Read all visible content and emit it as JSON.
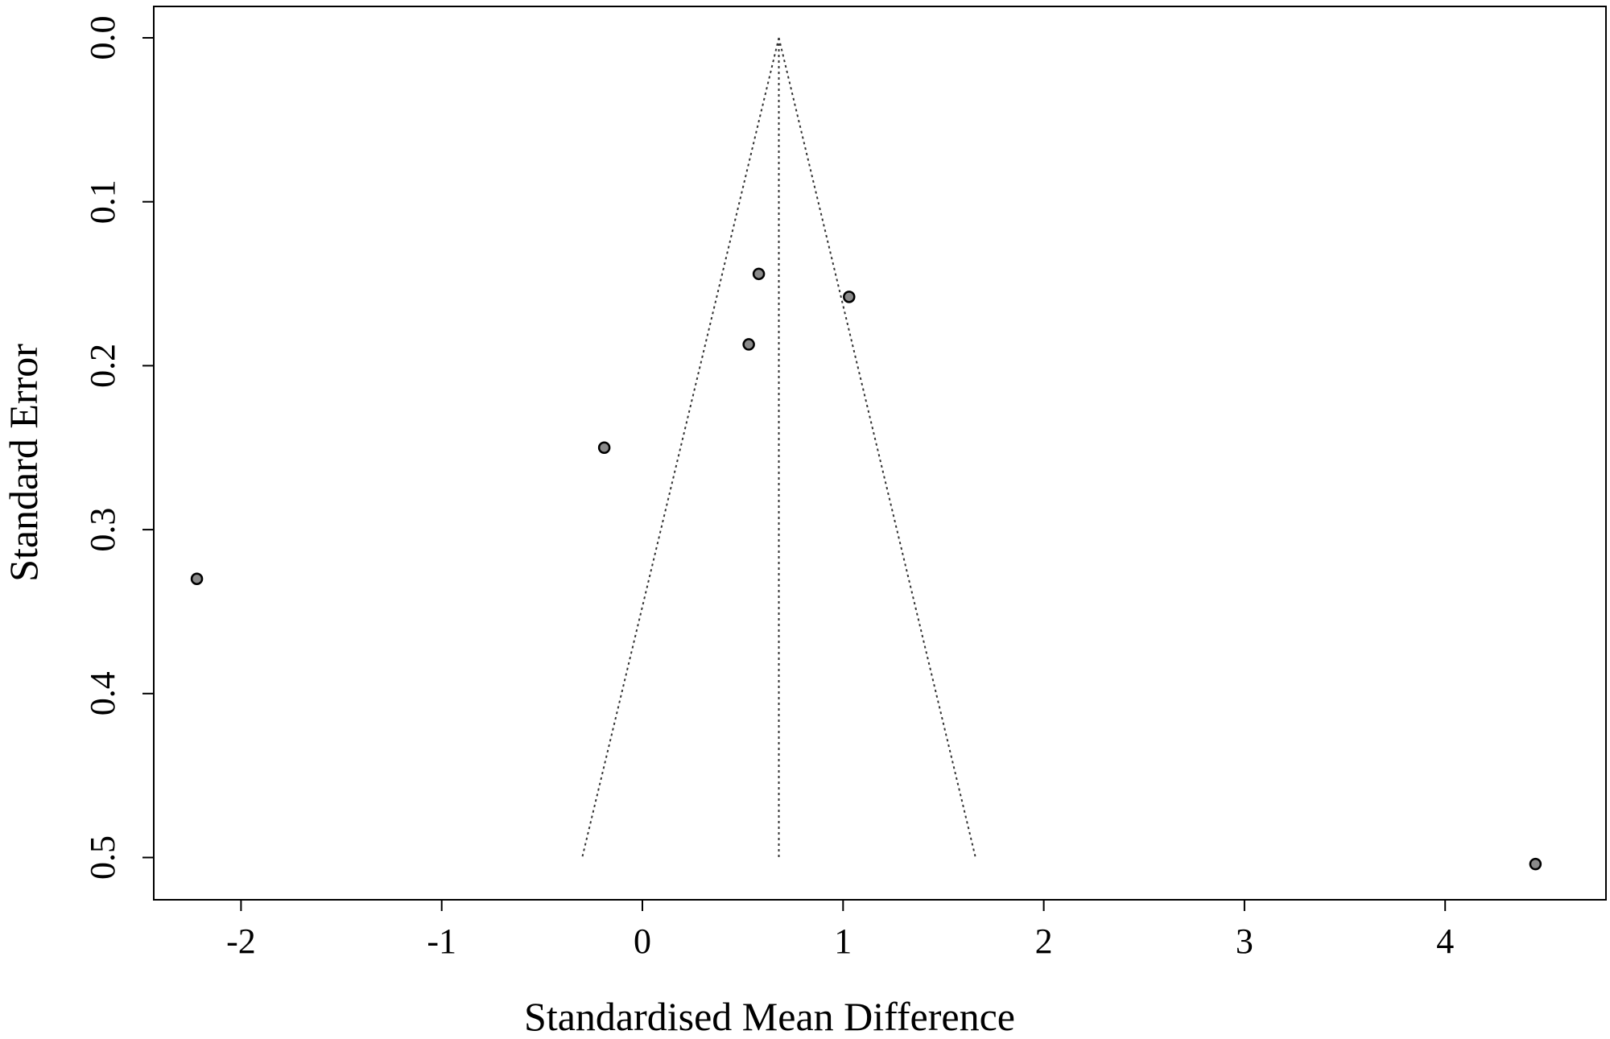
{
  "chart_data": {
    "type": "scatter",
    "title": "",
    "xlabel": "Standardised Mean Difference",
    "ylabel": "Standard Error",
    "xlim": [
      -2.45,
      4.7
    ],
    "ylim": [
      0.0,
      0.52
    ],
    "y_inverted": true,
    "x_ticks": [
      -2,
      -1,
      0,
      1,
      2,
      3,
      4
    ],
    "x_tick_labels": [
      "-2",
      "-1",
      "0",
      "1",
      "2",
      "3",
      "4"
    ],
    "y_ticks": [
      0.0,
      0.1,
      0.2,
      0.3,
      0.4,
      0.5
    ],
    "y_tick_labels": [
      "0.0",
      "0.1",
      "0.2",
      "0.3",
      "0.4",
      "0.5"
    ],
    "pooled_estimate": 0.68,
    "funnel_se_max": 0.5,
    "funnel_lower_at_max": -0.3,
    "funnel_upper_at_max": 1.66,
    "grid": false,
    "points": [
      {
        "x": 0.58,
        "y": 0.144
      },
      {
        "x": 1.03,
        "y": 0.158
      },
      {
        "x": 0.53,
        "y": 0.187
      },
      {
        "x": -0.19,
        "y": 0.25
      },
      {
        "x": -2.22,
        "y": 0.33
      },
      {
        "x": 4.45,
        "y": 0.504
      }
    ]
  }
}
